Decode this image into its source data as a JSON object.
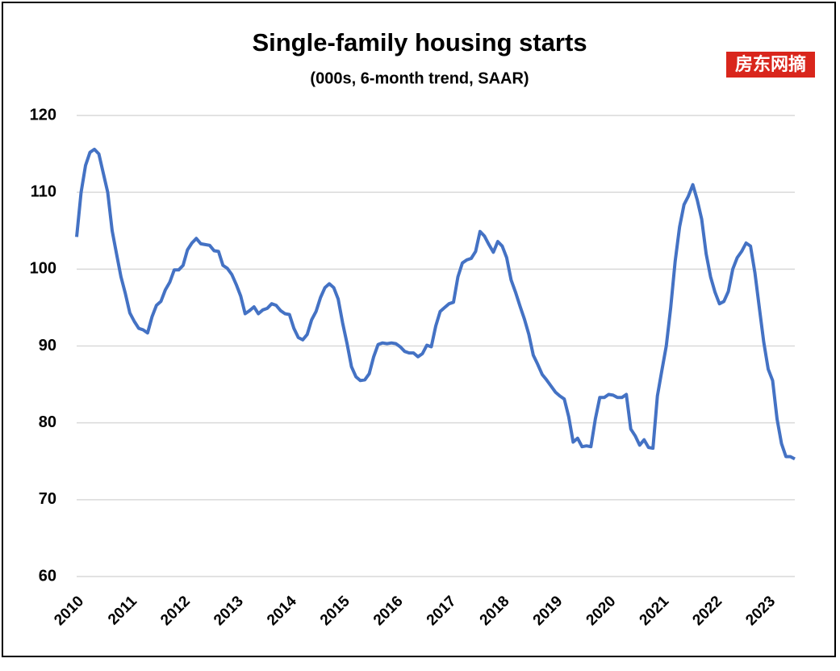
{
  "chart_data": {
    "type": "line",
    "title": "Single-family housing starts",
    "subtitle": "(000s, 6-month trend, SAAR)",
    "watermark": "房东网摘",
    "categories": [
      "2010",
      null,
      null,
      null,
      null,
      null,
      null,
      null,
      null,
      null,
      null,
      null,
      "2011",
      null,
      null,
      null,
      null,
      null,
      null,
      null,
      null,
      null,
      null,
      null,
      "2012",
      null,
      null,
      null,
      null,
      null,
      null,
      null,
      null,
      null,
      null,
      null,
      "2013",
      null,
      null,
      null,
      null,
      null,
      null,
      null,
      null,
      null,
      null,
      null,
      "2014",
      null,
      null,
      null,
      null,
      null,
      null,
      null,
      null,
      null,
      null,
      null,
      "2015",
      null,
      null,
      null,
      null,
      null,
      null,
      null,
      null,
      null,
      null,
      null,
      "2016",
      null,
      null,
      null,
      null,
      null,
      null,
      null,
      null,
      null,
      null,
      null,
      "2017",
      null,
      null,
      null,
      null,
      null,
      null,
      null,
      null,
      null,
      null,
      null,
      "2018",
      null,
      null,
      null,
      null,
      null,
      null,
      null,
      null,
      null,
      null,
      null,
      "2019",
      null,
      null,
      null,
      null,
      null,
      null,
      null,
      null,
      null,
      null,
      null,
      "2020",
      null,
      null,
      null,
      null,
      null,
      null,
      null,
      null,
      null,
      null,
      null,
      "2021",
      null,
      null,
      null,
      null,
      null,
      null,
      null,
      null,
      null,
      null,
      null,
      "2022",
      null,
      null,
      null,
      null,
      null,
      null,
      null,
      null,
      null,
      null,
      null,
      "2023",
      null,
      null,
      null,
      null,
      null,
      null
    ],
    "series": [
      {
        "name": "Single-family housing starts",
        "color": "#4472c4",
        "values": [
          104.2,
          110,
          113.5,
          115.2,
          115.6,
          115,
          112.5,
          110,
          105,
          102,
          99,
          96.8,
          94.3,
          93.2,
          92.3,
          92.1,
          91.7,
          93.8,
          95.3,
          95.8,
          97.3,
          98.3,
          99.9,
          99.9,
          100.5,
          102.5,
          103.4,
          104,
          103.3,
          103.2,
          103.1,
          102.4,
          102.3,
          100.5,
          100.1,
          99.3,
          98,
          96.5,
          94.2,
          94.6,
          95.1,
          94.2,
          94.7,
          94.9,
          95.5,
          95.3,
          94.6,
          94.2,
          94.1,
          92.3,
          91.1,
          90.8,
          91.5,
          93.4,
          94.5,
          96.3,
          97.6,
          98.1,
          97.6,
          96.1,
          93,
          90.3,
          87.3,
          86,
          85.5,
          85.6,
          86.4,
          88.6,
          90.2,
          90.4,
          90.3,
          90.4,
          90.3,
          89.9,
          89.3,
          89.1,
          89.1,
          88.6,
          89,
          90.1,
          89.9,
          92.6,
          94.5,
          95,
          95.5,
          95.7,
          99,
          100.8,
          101.2,
          101.4,
          102.3,
          104.9,
          104.3,
          103.2,
          102.2,
          103.6,
          103,
          101.5,
          98.6,
          97,
          95.2,
          93.5,
          91.5,
          88.8,
          87.6,
          86.3,
          85.6,
          84.8,
          84,
          83.5,
          83.1,
          80.8,
          77.5,
          78,
          76.9,
          77,
          76.9,
          80.5,
          83.3,
          83.3,
          83.7,
          83.6,
          83.3,
          83.3,
          83.7,
          79.2,
          78.3,
          77.1,
          77.8,
          76.8,
          76.7,
          83.5,
          86.8,
          90,
          95,
          101,
          105.5,
          108.4,
          109.5,
          111,
          109,
          106.5,
          102,
          99,
          97,
          95.5,
          95.8,
          97.1,
          100,
          101.5,
          102.3,
          103.4,
          103,
          99.5,
          95,
          90.5,
          87,
          85.5,
          80.5,
          77.3,
          75.6,
          75.6,
          75.3
        ]
      }
    ],
    "ylim": [
      60,
      120
    ],
    "yticks": [
      60,
      70,
      80,
      90,
      100,
      110,
      120
    ],
    "grid": true
  }
}
